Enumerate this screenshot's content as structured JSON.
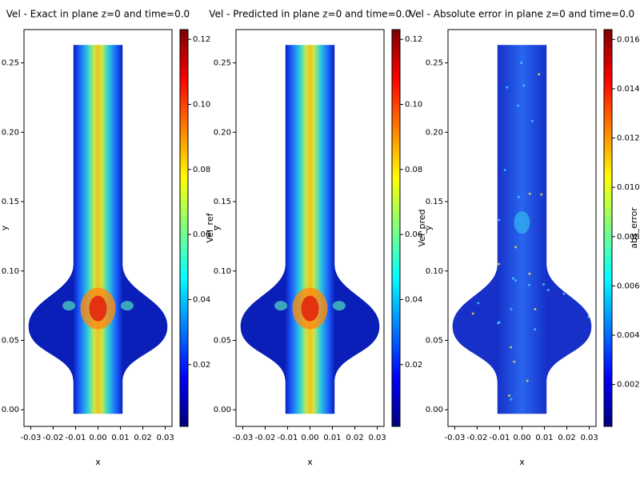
{
  "chart_data": [
    {
      "type": "field",
      "title": "Vel - Exact in plane z=0 and time=0.0",
      "xlabel": "x",
      "ylabel": "y",
      "xlim": [
        -0.033,
        0.033
      ],
      "xticks": [
        -0.03,
        -0.02,
        -0.01,
        {
          "value": 0,
          "label": "0.00"
        },
        0.01,
        0.02,
        0.03
      ],
      "ylim": [
        -0.012,
        0.274
      ],
      "yticks": [
        {
          "value": 0,
          "label": "0.00"
        },
        0.05,
        {
          "value": 0.1,
          "label": "0.10"
        },
        0.15,
        {
          "value": 0.2,
          "label": "0.20"
        },
        0.25
      ],
      "colormap": "jet",
      "colorbar_label": "Vel_ref",
      "colorbar_lim": [
        0.001,
        0.123
      ],
      "colorbar_ticks": [
        0.02,
        0.04,
        0.06,
        0.08,
        {
          "value": 0.1,
          "label": "0.10"
        },
        0.12
      ]
    },
    {
      "type": "field",
      "title": "Vel - Predicted in plane z=0 and time=0.0",
      "xlabel": "x",
      "ylabel": "y",
      "xlim": [
        -0.033,
        0.033
      ],
      "xticks": [
        -0.03,
        -0.02,
        -0.01,
        {
          "value": 0,
          "label": "0.00"
        },
        0.01,
        0.02,
        0.03
      ],
      "ylim": [
        -0.012,
        0.274
      ],
      "yticks": [
        {
          "value": 0,
          "label": "0.00"
        },
        0.05,
        {
          "value": 0.1,
          "label": "0.10"
        },
        0.15,
        {
          "value": 0.2,
          "label": "0.20"
        },
        0.25
      ],
      "colormap": "jet",
      "colorbar_label": "Vel_pred",
      "colorbar_lim": [
        0.001,
        0.123
      ],
      "colorbar_ticks": [
        0.02,
        0.04,
        0.06,
        0.08,
        {
          "value": 0.1,
          "label": "0.10"
        },
        0.12
      ]
    },
    {
      "type": "error-field",
      "title": "Vel - Absolute error in plane z=0 and time=0.0",
      "xlabel": "x",
      "ylabel": "y",
      "xlim": [
        -0.033,
        0.033
      ],
      "xticks": [
        -0.03,
        -0.02,
        -0.01,
        {
          "value": 0,
          "label": "0.00"
        },
        0.01,
        0.02,
        0.03
      ],
      "ylim": [
        -0.012,
        0.274
      ],
      "yticks": [
        {
          "value": 0,
          "label": "0.00"
        },
        0.05,
        {
          "value": 0.1,
          "label": "0.10"
        },
        0.15,
        {
          "value": 0.2,
          "label": "0.20"
        },
        0.25
      ],
      "colormap": "jet",
      "colorbar_label": "abs_error",
      "colorbar_lim": [
        0.0003,
        0.0164
      ],
      "colorbar_ticks": [
        0.002,
        0.004,
        0.006,
        0.008,
        {
          "value": 0.01,
          "label": "0.010"
        },
        0.012,
        0.014,
        0.016
      ]
    }
  ]
}
